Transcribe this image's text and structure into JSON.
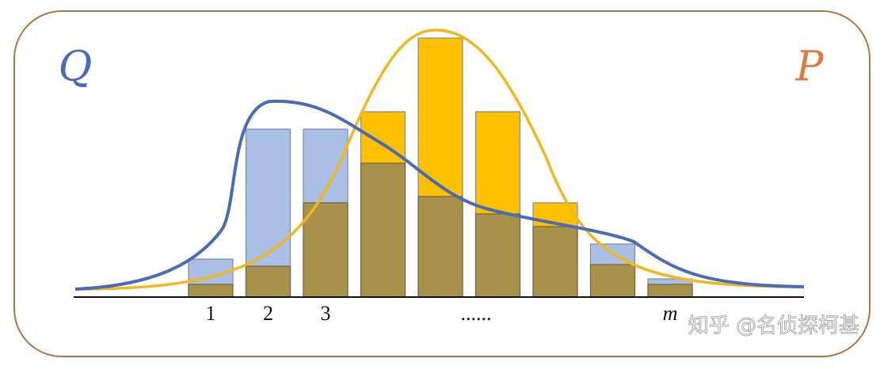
{
  "chart_data": {
    "type": "bar",
    "categories": [
      "1",
      "2",
      "3",
      null,
      "......",
      null,
      null,
      null,
      "m"
    ],
    "series": [
      {
        "name": "Q",
        "color": "#a9bfe3",
        "line_color": "#4a6bb8",
        "values": [
          48,
          212,
          212,
          169,
          127,
          105,
          89,
          67,
          23
        ]
      },
      {
        "name": "P",
        "color": "#ffc000",
        "line_color": "#f0b81c",
        "values": [
          16,
          39,
          119,
          234,
          327,
          234,
          119,
          41,
          16
        ]
      }
    ],
    "overlap_color": "#a8914a",
    "ylim": [
      0,
      340
    ],
    "watermark": "知乎 @名侦探柯基"
  }
}
